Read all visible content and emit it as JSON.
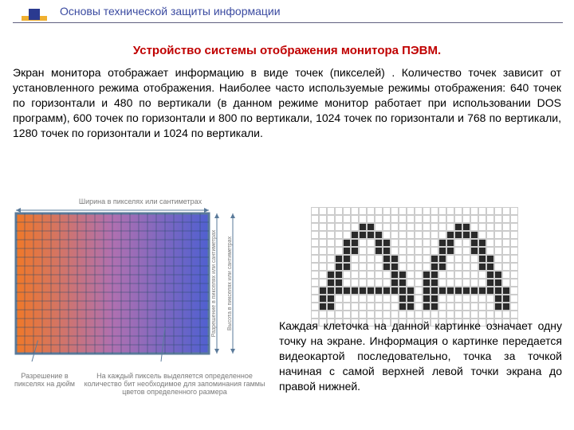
{
  "header": {
    "subject": "Основы технической защиты информации",
    "color": "#3a4aa0",
    "logo": {
      "bar_color": "#f0b030",
      "square_color": "#2a3a90"
    }
  },
  "title": {
    "text": "Устройство системы отображения монитора ПЭВМ.",
    "color": "#c00000"
  },
  "paragraph1": "Экран монитора отображает информацию в виде точек (пикселей) . Количество точек зависит от установленного режима отображения. Наиболее часто используемые режимы отображения: 640 точек по горизонтали и 480 по вертикали (в данном режиме монитор работает при использовании DOS программ), 600 точек по горизонтали и 800 по вертикали, 1024 точек по горизонтали и 768 по вертикали, 1280 точек по горизонтали и 1024 по вертикали.",
  "paragraph2": "Каждая клеточка на данной картинке означает одну точку на экране. Информация о картинке передается видеокартой последовательно, точка за точкой начиная с самой верхней левой точки экрана до правой нижней.",
  "grid_figure": {
    "cols": 22,
    "rows": 16,
    "cell_size": 11,
    "border_color": "#5a7a9a",
    "border_width": 3,
    "gradient_from": "#f07828",
    "gradient_mid": "#b070b0",
    "gradient_to": "#5060d0",
    "grid_line": "#2a4a6a",
    "caption_top": "Ширина в пикселях или сантиметрах",
    "caption_right1": "Разрешение в пикселях или сантиметрах",
    "caption_right2": "Высота в пикселях или сантиметрах",
    "caption_bl": "Разрешение в пикселях на дюйм",
    "caption_br": "На каждый пиксель выделяется определенное количество бит необходимое для запоминания гаммы цветов определенного размера",
    "caption_color": "#7a7a7a",
    "arrow_color": "#5a7a9a"
  },
  "bitmap_figure": {
    "cols": 26,
    "rows": 15,
    "cell_size": 10,
    "on_color": "#2a2a2a",
    "off_color": "#ffffff",
    "grid_color": "#cccccc",
    "pattern": [
      "00000000000000000000000000",
      "00000000000000000000000000",
      "00000011000000000011000000",
      "00000111100000000111100000",
      "00001100110000001100110000",
      "00001100110000001100110000",
      "00011000011000011000011000",
      "00011000011000011000011000",
      "00110000001100110000001100",
      "00110000001100110000001100",
      "01111111111110111111111110",
      "01100000000110110000000110",
      "01100000000110110000000110",
      "00000000000000000000000000",
      "00000000000000000000000000"
    ]
  }
}
